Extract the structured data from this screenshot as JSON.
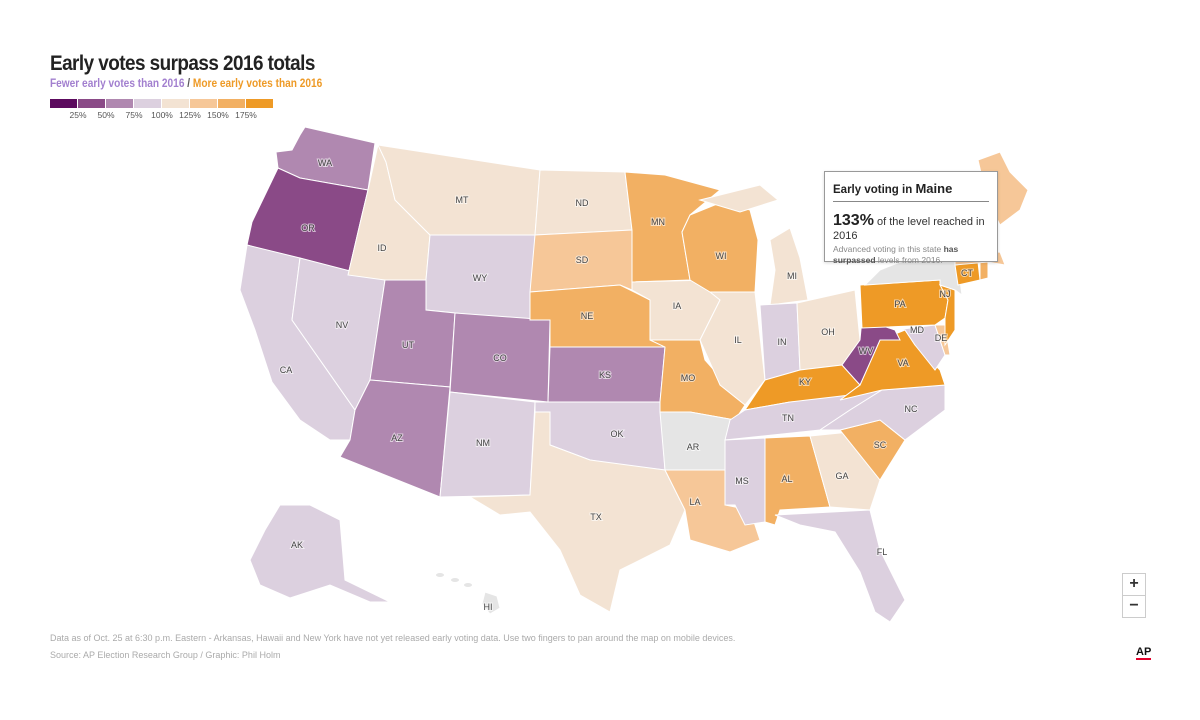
{
  "header": {
    "title": "Early votes surpass 2016 totals",
    "subtitle_fewer": "Fewer early votes than 2016",
    "subtitle_sep": "/",
    "subtitle_more": "More early votes than 2016"
  },
  "legend": {
    "colors": [
      "#5c0a5e",
      "#8a4a87",
      "#b088b0",
      "#dcd0df",
      "#f3e3d3",
      "#f6c798",
      "#f2b063",
      "#ee9a26"
    ],
    "ticks": [
      "25%",
      "50%",
      "75%",
      "100%",
      "125%",
      "150%",
      "175%"
    ],
    "no_data_color": "#e5e5e5"
  },
  "states": [
    {
      "abbr": "WA",
      "bucket": 2
    },
    {
      "abbr": "OR",
      "bucket": 1
    },
    {
      "abbr": "CA",
      "bucket": 3
    },
    {
      "abbr": "NV",
      "bucket": 3
    },
    {
      "abbr": "ID",
      "bucket": 4
    },
    {
      "abbr": "MT",
      "bucket": 4
    },
    {
      "abbr": "WY",
      "bucket": 3
    },
    {
      "abbr": "UT",
      "bucket": 2
    },
    {
      "abbr": "CO",
      "bucket": 2
    },
    {
      "abbr": "AZ",
      "bucket": 2
    },
    {
      "abbr": "NM",
      "bucket": 3
    },
    {
      "abbr": "ND",
      "bucket": 4
    },
    {
      "abbr": "SD",
      "bucket": 5
    },
    {
      "abbr": "NE",
      "bucket": 6
    },
    {
      "abbr": "KS",
      "bucket": 2
    },
    {
      "abbr": "OK",
      "bucket": 3
    },
    {
      "abbr": "TX",
      "bucket": 4
    },
    {
      "abbr": "MN",
      "bucket": 6
    },
    {
      "abbr": "IA",
      "bucket": 4
    },
    {
      "abbr": "MO",
      "bucket": 6
    },
    {
      "abbr": "AR",
      "bucket": null
    },
    {
      "abbr": "LA",
      "bucket": 5
    },
    {
      "abbr": "WI",
      "bucket": 6
    },
    {
      "abbr": "IL",
      "bucket": 4
    },
    {
      "abbr": "MI",
      "bucket": 4
    },
    {
      "abbr": "IN",
      "bucket": 3
    },
    {
      "abbr": "OH",
      "bucket": 4
    },
    {
      "abbr": "KY",
      "bucket": 7
    },
    {
      "abbr": "TN",
      "bucket": 3
    },
    {
      "abbr": "MS",
      "bucket": 3
    },
    {
      "abbr": "AL",
      "bucket": 6
    },
    {
      "abbr": "GA",
      "bucket": 4
    },
    {
      "abbr": "FL",
      "bucket": 3
    },
    {
      "abbr": "SC",
      "bucket": 6
    },
    {
      "abbr": "NC",
      "bucket": 3
    },
    {
      "abbr": "VA",
      "bucket": 7
    },
    {
      "abbr": "WV",
      "bucket": 1
    },
    {
      "abbr": "MD",
      "bucket": 3
    },
    {
      "abbr": "DE",
      "bucket": 5
    },
    {
      "abbr": "PA",
      "bucket": 7
    },
    {
      "abbr": "NJ",
      "bucket": 7
    },
    {
      "abbr": "NY",
      "bucket": null
    },
    {
      "abbr": "CT",
      "bucket": 7
    },
    {
      "abbr": "RI",
      "bucket": 6
    },
    {
      "abbr": "MA",
      "bucket": 5
    },
    {
      "abbr": "ME",
      "bucket": 5
    },
    {
      "abbr": "AK",
      "bucket": 3
    },
    {
      "abbr": "HI",
      "bucket": null
    }
  ],
  "tooltip": {
    "heading_prefix": "Early voting in",
    "state": "Maine",
    "percent": "133%",
    "percent_text": "of the level reached in 2016",
    "desc_prefix": "Advanced voting in this state",
    "desc_bold": "has surpassed",
    "desc_suffix": "levels from 2016."
  },
  "zoom": {
    "in": "+",
    "out": "−"
  },
  "footer": {
    "note": "Data as of Oct. 25 at 6:30 p.m. Eastern - Arkansas, Hawaii and New York have not yet released early voting data. Use two fingers to pan around the map on mobile devices.",
    "source": "Source: AP Election Research Group / Graphic: Phil Holm"
  },
  "logo": "AP"
}
